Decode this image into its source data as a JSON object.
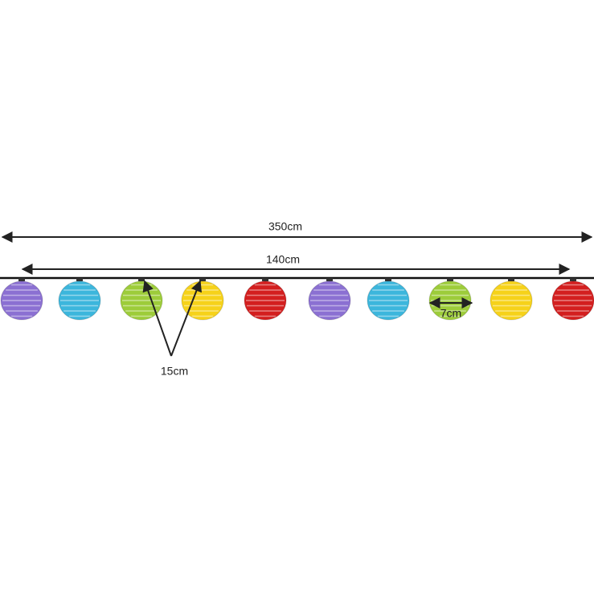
{
  "dimensions": {
    "total_length": "350cm",
    "lit_length": "140cm",
    "spacing": "15cm",
    "diameter": "7cm"
  }
}
